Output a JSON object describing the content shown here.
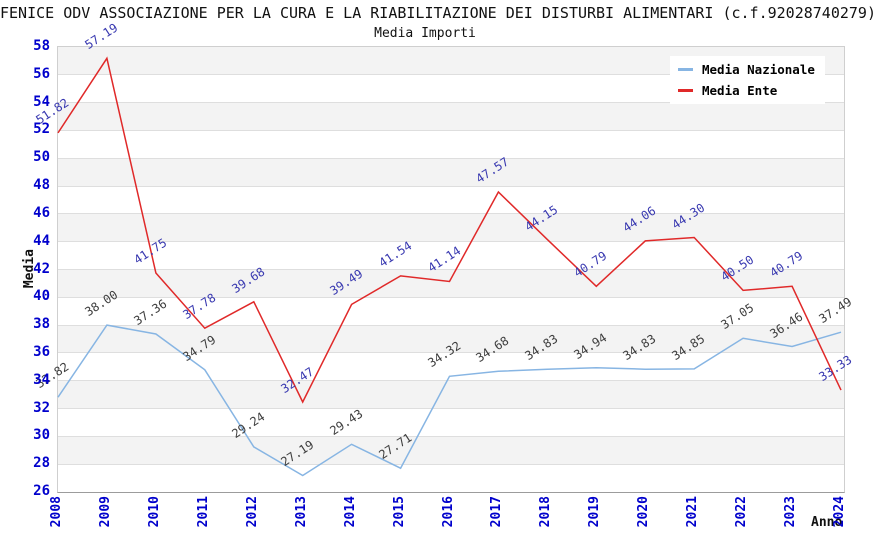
{
  "chart_data": {
    "type": "line",
    "title": "FENICE ODV ASSOCIAZIONE PER LA CURA E LA RIABILITAZIONE DEI DISTURBI ALIMENTARI (c.f.92028740279)",
    "subtitle": "Media Importi",
    "xlabel": "Anno",
    "ylabel": "Media",
    "x": [
      2008,
      2009,
      2010,
      2011,
      2012,
      2013,
      2014,
      2015,
      2016,
      2017,
      2018,
      2019,
      2020,
      2021,
      2022,
      2023,
      2024
    ],
    "series": [
      {
        "name": "Media Nazionale",
        "color": "#87b5e3",
        "label_color": "#3d3d3d",
        "values": [
          32.82,
          38.0,
          37.36,
          34.79,
          29.24,
          27.19,
          29.43,
          27.71,
          34.32,
          34.68,
          34.83,
          34.94,
          34.83,
          34.85,
          37.05,
          36.46,
          37.49
        ]
      },
      {
        "name": "Media Ente",
        "color": "#e02929",
        "label_color": "#3838b0",
        "values": [
          51.82,
          57.19,
          41.75,
          37.78,
          39.68,
          32.47,
          39.49,
          41.54,
          41.14,
          47.57,
          44.15,
          40.79,
          44.06,
          44.3,
          40.5,
          40.79,
          33.33
        ]
      }
    ],
    "ylim": [
      26,
      58
    ],
    "ytick_step": 2,
    "grid": "alternating-horizontal-bands",
    "legend_position": "top-right",
    "colors": {
      "axis_tick_label": "#0000cc",
      "band_fill": "#f3f3f3",
      "gridline": "#dedede",
      "background": "#ffffff"
    }
  }
}
